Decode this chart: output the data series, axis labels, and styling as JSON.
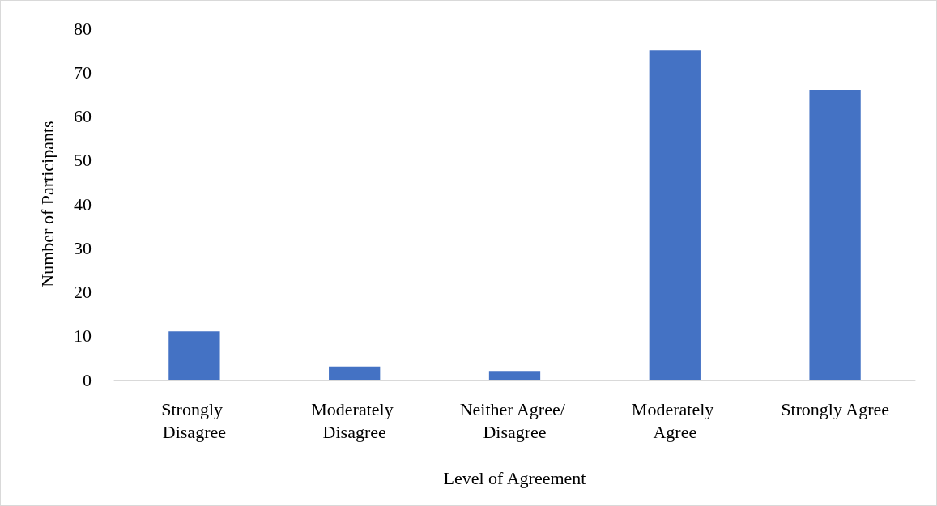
{
  "chart_data": {
    "type": "bar",
    "xlabel": "Level of Agreement",
    "ylabel": "Number of Participants",
    "categories": [
      "Strongly Disagree",
      "Moderately Disagree",
      "Neither Agree/ Disagree",
      "Moderately Agree",
      "Strongly Agree"
    ],
    "values": [
      11,
      3,
      2,
      75,
      66
    ],
    "color": "#4472c4",
    "ylim": [
      0,
      80
    ],
    "yticks": [
      0,
      10,
      20,
      30,
      40,
      50,
      60,
      70,
      80
    ],
    "grid": false
  }
}
